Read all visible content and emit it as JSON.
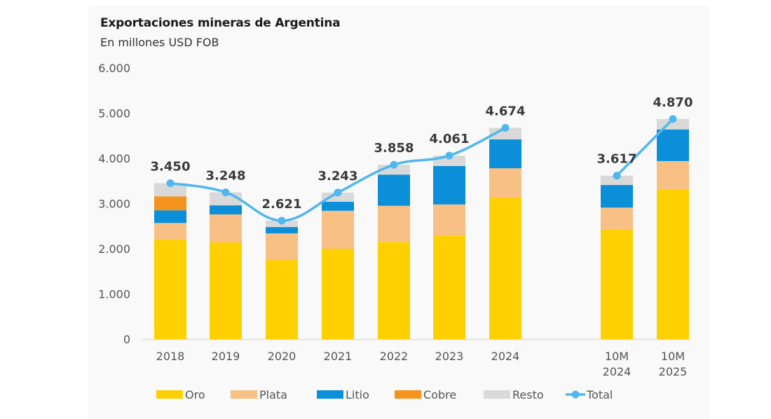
{
  "chart_data": {
    "type": "bar",
    "stacked": true,
    "title": "Exportaciones mineras de Argentina",
    "subtitle": "En millones USD FOB",
    "xlabel": "",
    "ylabel": "",
    "ylim": [
      0,
      6000
    ],
    "yticks": [
      0,
      1000,
      2000,
      3000,
      4000,
      5000,
      6000
    ],
    "ytick_labels": [
      "0",
      "1.000",
      "2.000",
      "3.000",
      "4.000",
      "5.000",
      "6.000"
    ],
    "categories": [
      "2018",
      "2019",
      "2020",
      "2021",
      "2022",
      "2023",
      "2024",
      "10M 2024",
      "10M 2025"
    ],
    "category_label_lines": [
      [
        "2018"
      ],
      [
        "2019"
      ],
      [
        "2020"
      ],
      [
        "2021"
      ],
      [
        "2022"
      ],
      [
        "2023"
      ],
      [
        "2024"
      ],
      [
        "10M",
        "2024"
      ],
      [
        "10M",
        "2025"
      ]
    ],
    "series": [
      {
        "name": "Oro",
        "color": "#FFD000",
        "values": [
          2200,
          2140,
          1750,
          2000,
          2150,
          2290,
          3130,
          2420,
          3320
        ]
      },
      {
        "name": "Plata",
        "color": "#F8C084",
        "values": [
          370,
          620,
          590,
          840,
          800,
          690,
          650,
          490,
          620
        ]
      },
      {
        "name": "Litio",
        "color": "#0A8FD8",
        "values": [
          280,
          200,
          140,
          200,
          690,
          850,
          640,
          500,
          700
        ]
      },
      {
        "name": "Cobre",
        "color": "#F4931E",
        "values": [
          310,
          0,
          0,
          0,
          0,
          0,
          0,
          0,
          0
        ]
      },
      {
        "name": "Resto",
        "color": "#D9D9D9",
        "values": [
          290,
          288,
          141,
          203,
          218,
          231,
          254,
          207,
          230
        ]
      }
    ],
    "line_series": {
      "name": "Total",
      "color": "#4FB8EE",
      "values": [
        3450,
        3248,
        2621,
        3243,
        3858,
        4061,
        4674,
        3617,
        4870
      ],
      "labels": [
        "3.450",
        "3.248",
        "2.621",
        "3.243",
        "3.858",
        "4.061",
        "4.674",
        "3.617",
        "4.870"
      ]
    },
    "legend": [
      "Oro",
      "Plata",
      "Litio",
      "Cobre",
      "Resto",
      "Total"
    ],
    "legend_position": "bottom",
    "grid": false
  }
}
